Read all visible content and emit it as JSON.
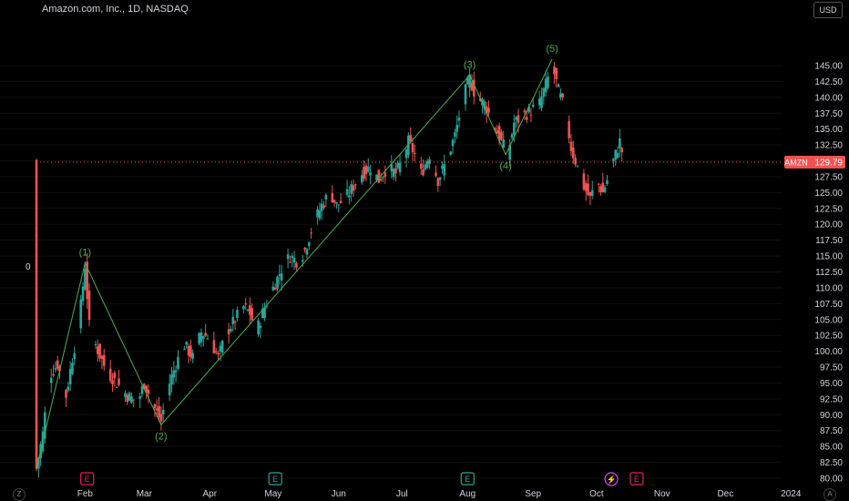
{
  "header": {
    "symbol_title": "Amazon.com, Inc., 1D, NASDAQ",
    "currency_button": "USD"
  },
  "zero_label": "0",
  "timezone_button": "Z",
  "auto_scale_button": "A",
  "colors": {
    "up": "#26a69a",
    "down": "#ef5350",
    "wave": "#4caf50",
    "price_line": "#ef5350"
  },
  "chart_data": {
    "type": "candlestick",
    "title": "Amazon.com, Inc., 1D, NASDAQ",
    "symbol": "AMZN",
    "last_price": "129.79",
    "ylim": [
      80,
      147
    ],
    "y_ticks": [
      "80.00",
      "82.50",
      "85.00",
      "87.50",
      "90.00",
      "92.50",
      "95.00",
      "97.50",
      "100.00",
      "102.50",
      "105.00",
      "107.50",
      "110.00",
      "112.50",
      "115.00",
      "117.50",
      "120.00",
      "122.50",
      "125.00",
      "127.50",
      "130.00",
      "132.50",
      "135.00",
      "137.50",
      "140.00",
      "142.50",
      "145.00"
    ],
    "x_ticks": [
      {
        "label": "Feb",
        "day": 23
      },
      {
        "label": "Mar",
        "day": 51
      },
      {
        "label": "Apr",
        "day": 82
      },
      {
        "label": "May",
        "day": 112
      },
      {
        "label": "Jun",
        "day": 143
      },
      {
        "label": "Jul",
        "day": 173
      },
      {
        "label": "Aug",
        "day": 204
      },
      {
        "label": "Sep",
        "day": 235
      },
      {
        "label": "Oct",
        "day": 265
      },
      {
        "label": "Nov",
        "day": 296
      },
      {
        "label": "Dec",
        "day": 326
      },
      {
        "label": "2024",
        "day": 357
      }
    ],
    "key_points": [
      {
        "day": 0,
        "price": 81.5
      },
      {
        "day": 3,
        "price": 87
      },
      {
        "day": 6,
        "price": 96
      },
      {
        "day": 10,
        "price": 98
      },
      {
        "day": 14,
        "price": 93
      },
      {
        "day": 17,
        "price": 99
      },
      {
        "day": 20,
        "price": 104
      },
      {
        "day": 23,
        "price": 113.5
      },
      {
        "day": 25,
        "price": 104
      },
      {
        "day": 28,
        "price": 101
      },
      {
        "day": 33,
        "price": 97
      },
      {
        "day": 38,
        "price": 95
      },
      {
        "day": 43,
        "price": 93
      },
      {
        "day": 48,
        "price": 92
      },
      {
        "day": 51,
        "price": 95
      },
      {
        "day": 56,
        "price": 91
      },
      {
        "day": 59,
        "price": 89
      },
      {
        "day": 62,
        "price": 94
      },
      {
        "day": 66,
        "price": 98
      },
      {
        "day": 70,
        "price": 101
      },
      {
        "day": 74,
        "price": 99
      },
      {
        "day": 78,
        "price": 103
      },
      {
        "day": 82,
        "price": 102
      },
      {
        "day": 86,
        "price": 99
      },
      {
        "day": 90,
        "price": 103
      },
      {
        "day": 94,
        "price": 105
      },
      {
        "day": 98,
        "price": 107
      },
      {
        "day": 101,
        "price": 106
      },
      {
        "day": 104,
        "price": 103
      },
      {
        "day": 108,
        "price": 107
      },
      {
        "day": 112,
        "price": 110
      },
      {
        "day": 116,
        "price": 113
      },
      {
        "day": 120,
        "price": 115
      },
      {
        "day": 124,
        "price": 114
      },
      {
        "day": 127,
        "price": 116
      },
      {
        "day": 131,
        "price": 120
      },
      {
        "day": 135,
        "price": 123
      },
      {
        "day": 139,
        "price": 125
      },
      {
        "day": 142,
        "price": 123
      },
      {
        "day": 146,
        "price": 124
      },
      {
        "day": 150,
        "price": 126
      },
      {
        "day": 154,
        "price": 128
      },
      {
        "day": 158,
        "price": 129
      },
      {
        "day": 162,
        "price": 127
      },
      {
        "day": 166,
        "price": 129
      },
      {
        "day": 170,
        "price": 128
      },
      {
        "day": 173,
        "price": 130
      },
      {
        "day": 176,
        "price": 133
      },
      {
        "day": 179,
        "price": 131
      },
      {
        "day": 182,
        "price": 128
      },
      {
        "day": 186,
        "price": 131
      },
      {
        "day": 190,
        "price": 127
      },
      {
        "day": 194,
        "price": 130
      },
      {
        "day": 198,
        "price": 134
      },
      {
        "day": 202,
        "price": 140
      },
      {
        "day": 205,
        "price": 143
      },
      {
        "day": 208,
        "price": 140
      },
      {
        "day": 212,
        "price": 139
      },
      {
        "day": 216,
        "price": 136
      },
      {
        "day": 220,
        "price": 133
      },
      {
        "day": 223,
        "price": 131
      },
      {
        "day": 226,
        "price": 136
      },
      {
        "day": 230,
        "price": 137
      },
      {
        "day": 234,
        "price": 138
      },
      {
        "day": 238,
        "price": 139
      },
      {
        "day": 241,
        "price": 142
      },
      {
        "day": 244,
        "price": 145
      },
      {
        "day": 247,
        "price": 141
      },
      {
        "day": 250,
        "price": 138
      },
      {
        "day": 253,
        "price": 132
      },
      {
        "day": 256,
        "price": 129
      },
      {
        "day": 259,
        "price": 126
      },
      {
        "day": 262,
        "price": 124
      },
      {
        "day": 265,
        "price": 127
      },
      {
        "day": 268,
        "price": 125
      },
      {
        "day": 271,
        "price": 128
      },
      {
        "day": 274,
        "price": 131
      },
      {
        "day": 276,
        "price": 133
      },
      {
        "day": 278,
        "price": 130
      }
    ],
    "wave_labels": [
      {
        "label": "(1)",
        "day": 23,
        "price": 113.9
      },
      {
        "label": "(2)",
        "day": 59,
        "price": 88.4
      },
      {
        "label": "(3)",
        "day": 205,
        "price": 143.5
      },
      {
        "label": "(4)",
        "day": 222,
        "price": 131
      },
      {
        "label": "(5)",
        "day": 244,
        "price": 146
      }
    ],
    "events": [
      {
        "label": "E",
        "day": 24,
        "kind": "earnings-down"
      },
      {
        "label": "E",
        "day": 113,
        "kind": "earnings-up"
      },
      {
        "label": "E",
        "day": 204,
        "kind": "earnings-up"
      },
      {
        "label": "",
        "day": 272,
        "kind": "split"
      },
      {
        "label": "E",
        "day": 284,
        "kind": "earnings-upcoming"
      }
    ]
  }
}
